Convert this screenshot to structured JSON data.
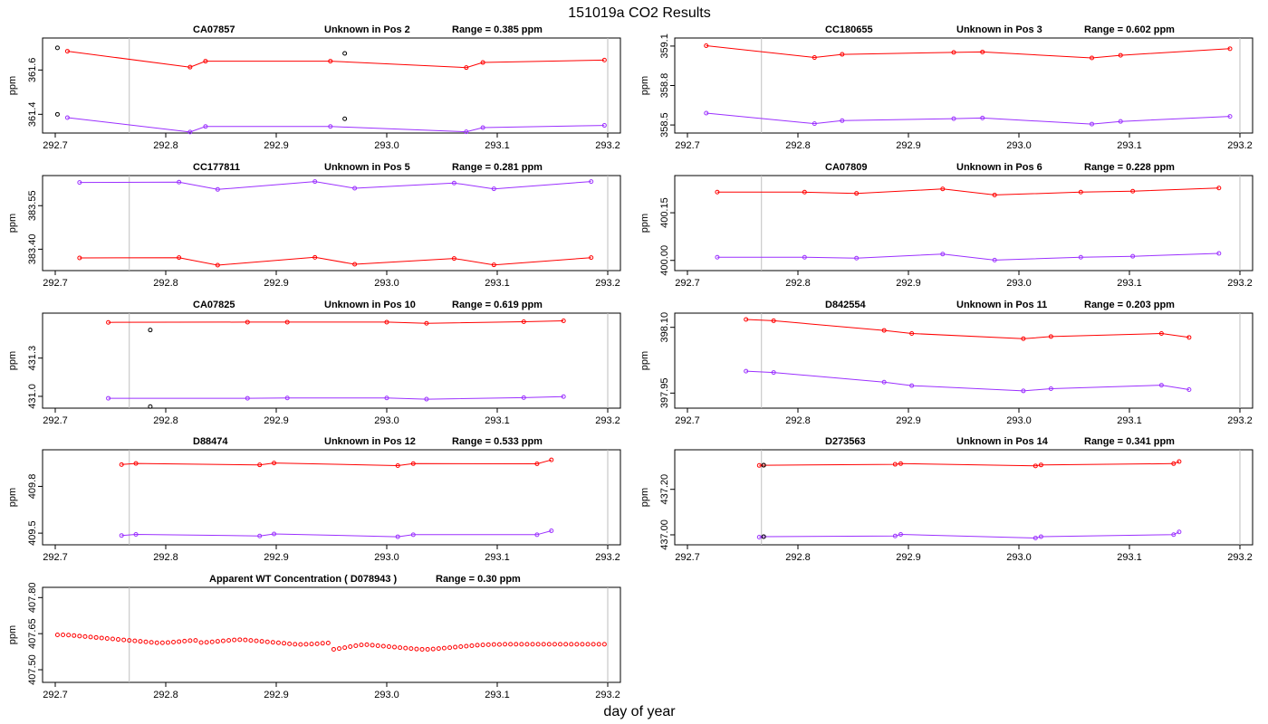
{
  "page": {
    "title": "151019a  CO2 Results",
    "xlabel": "day of year"
  },
  "colors": {
    "red": "#ff0000",
    "purple": "#9b30ff",
    "black": "#000000",
    "gray": "#bebebe"
  },
  "chart_data": [
    {
      "type": "line",
      "title_parts": [
        "CA07857",
        "Unknown in Pos 2",
        "Range =  0.385 ppm"
      ],
      "xlim": [
        292.7,
        293.2
      ],
      "xticks": [
        292.7,
        292.8,
        292.9,
        293.0,
        293.1,
        293.2
      ],
      "xtick_labels": [
        "292.7",
        "292.8",
        "292.9",
        "293.0",
        "293.1",
        "293.2"
      ],
      "ylim": [
        361.34,
        361.72
      ],
      "yticks": [
        361.4,
        361.6
      ],
      "ytick_labels": [
        "361.4",
        "361.6"
      ],
      "ylabel": "ppm",
      "vlines": [
        292.767,
        293.2
      ],
      "series": [
        {
          "name": "upper",
          "color": "red",
          "x": [
            292.711,
            292.822,
            292.836,
            292.949,
            293.072,
            293.087,
            293.197
          ],
          "y": [
            361.685,
            361.613,
            361.64,
            361.64,
            361.611,
            361.634,
            361.645
          ]
        },
        {
          "name": "lower",
          "color": "purple",
          "x": [
            292.711,
            292.822,
            292.836,
            292.949,
            293.072,
            293.087,
            293.197
          ],
          "y": [
            361.385,
            361.32,
            361.345,
            361.345,
            361.321,
            361.34,
            361.35
          ]
        }
      ],
      "points": [
        {
          "color": "black",
          "x": [
            292.702,
            292.702,
            292.962,
            292.962
          ],
          "y": [
            361.7,
            361.4,
            361.675,
            361.38
          ]
        }
      ]
    },
    {
      "type": "line",
      "title_parts": [
        "CC180655",
        "Unknown in Pos 3",
        "Range =  0.602 ppm"
      ],
      "xlim": [
        292.7,
        293.2
      ],
      "xticks": [
        292.7,
        292.8,
        292.9,
        293.0,
        293.1,
        293.2
      ],
      "xtick_labels": [
        "292.7",
        "292.8",
        "292.9",
        "293.0",
        "293.1",
        "293.2"
      ],
      "ylim": [
        358.48,
        359.12
      ],
      "yticks": [
        358.5,
        358.8,
        359.1
      ],
      "ytick_labels": [
        "358.5",
        "358.8",
        "359.1"
      ],
      "ylabel": "ppm",
      "vlines": [
        292.767,
        293.2
      ],
      "series": [
        {
          "name": "upper",
          "color": "red",
          "x": [
            292.717,
            292.815,
            292.84,
            292.941,
            292.967,
            293.066,
            293.092,
            293.191
          ],
          "y": [
            359.103,
            359.013,
            359.037,
            359.052,
            359.055,
            359.01,
            359.03,
            359.08
          ]
        },
        {
          "name": "lower",
          "color": "purple",
          "x": [
            292.717,
            292.815,
            292.84,
            292.941,
            292.967,
            293.066,
            293.092,
            293.191
          ],
          "y": [
            358.59,
            358.51,
            358.533,
            358.548,
            358.553,
            358.507,
            358.527,
            358.565
          ]
        }
      ],
      "points": []
    },
    {
      "type": "line",
      "title_parts": [
        "CC177811",
        "Unknown in Pos 5",
        "Range =  0.281 ppm"
      ],
      "xlim": [
        292.7,
        293.2
      ],
      "xticks": [
        292.7,
        292.8,
        292.9,
        293.0,
        293.1,
        293.2
      ],
      "xtick_labels": [
        "292.7",
        "292.8",
        "292.9",
        "293.0",
        "293.1",
        "293.2"
      ],
      "ylim": [
        383.345,
        383.635
      ],
      "yticks": [
        383.4,
        383.55
      ],
      "ytick_labels": [
        "383.40",
        "383.55"
      ],
      "ylabel": "ppm",
      "vlines": [
        292.767,
        293.2
      ],
      "series": [
        {
          "name": "upper",
          "color": "purple",
          "x": [
            292.722,
            292.812,
            292.847,
            292.935,
            292.971,
            293.061,
            293.097,
            293.185
          ],
          "y": [
            383.63,
            383.631,
            383.606,
            383.633,
            383.61,
            383.628,
            383.608,
            383.633
          ]
        },
        {
          "name": "lower",
          "color": "red",
          "x": [
            292.722,
            292.812,
            292.847,
            292.935,
            292.971,
            293.061,
            293.097,
            293.185
          ],
          "y": [
            383.37,
            383.371,
            383.345,
            383.372,
            383.348,
            383.368,
            383.346,
            383.371
          ]
        }
      ],
      "points": []
    },
    {
      "type": "line",
      "title_parts": [
        "CA07809",
        "Unknown in Pos 6",
        "Range =  0.228 ppm"
      ],
      "xlim": [
        292.7,
        293.2
      ],
      "xticks": [
        292.7,
        292.8,
        292.9,
        293.0,
        293.1,
        293.2
      ],
      "xtick_labels": [
        "292.7",
        "292.8",
        "292.9",
        "293.0",
        "293.1",
        "293.2"
      ],
      "ylim": [
        399.985,
        400.25
      ],
      "yticks": [
        400.0,
        400.15
      ],
      "ytick_labels": [
        "400.00",
        "400.15"
      ],
      "ylabel": "ppm",
      "vlines": [
        292.767,
        293.2
      ],
      "series": [
        {
          "name": "upper",
          "color": "red",
          "x": [
            292.727,
            292.806,
            292.853,
            292.931,
            292.978,
            293.056,
            293.103,
            293.181
          ],
          "y": [
            400.215,
            400.215,
            400.211,
            400.225,
            400.206,
            400.215,
            400.218,
            400.228
          ]
        },
        {
          "name": "lower",
          "color": "purple",
          "x": [
            292.727,
            292.806,
            292.853,
            292.931,
            292.978,
            293.056,
            293.103,
            293.181
          ],
          "y": [
            400.01,
            400.01,
            400.007,
            400.02,
            400.001,
            400.01,
            400.013,
            400.022
          ]
        }
      ],
      "points": []
    },
    {
      "type": "line",
      "title_parts": [
        "CA07825",
        "Unknown in Pos 10",
        "Range =  0.619 ppm"
      ],
      "xlim": [
        292.7,
        293.2
      ],
      "xticks": [
        292.7,
        292.8,
        292.9,
        293.0,
        293.1,
        293.2
      ],
      "xtick_labels": [
        "292.7",
        "292.8",
        "292.9",
        "293.0",
        "293.1",
        "293.2"
      ],
      "ylim": [
        430.95,
        431.61
      ],
      "yticks": [
        431.0,
        431.3
      ],
      "ytick_labels": [
        "431.0",
        "431.3"
      ],
      "ylabel": "ppm",
      "vlines": [
        292.767,
        293.2
      ],
      "series": [
        {
          "name": "upper",
          "color": "red",
          "x": [
            292.748,
            292.874,
            292.91,
            293.0,
            293.036,
            293.124,
            293.16
          ],
          "y": [
            431.58,
            431.582,
            431.582,
            431.582,
            431.573,
            431.585,
            431.592
          ]
        },
        {
          "name": "lower",
          "color": "purple",
          "x": [
            292.748,
            292.874,
            292.91,
            293.0,
            293.036,
            293.124,
            293.16
          ],
          "y": [
            430.985,
            430.985,
            430.987,
            430.987,
            430.978,
            430.99,
            430.998
          ]
        }
      ],
      "points": [
        {
          "color": "black",
          "x": [
            292.786,
            292.786
          ],
          "y": [
            431.52,
            430.92
          ]
        }
      ]
    },
    {
      "type": "line",
      "title_parts": [
        "D842554",
        "Unknown in Pos 11",
        "Range =  0.203 ppm"
      ],
      "xlim": [
        292.7,
        293.2
      ],
      "xticks": [
        292.7,
        292.8,
        292.9,
        293.0,
        293.1,
        293.2
      ],
      "xtick_labels": [
        "292.7",
        "292.8",
        "292.9",
        "293.0",
        "293.1",
        "293.2"
      ],
      "ylim": [
        397.928,
        398.12
      ],
      "yticks": [
        397.95,
        398.1
      ],
      "ytick_labels": [
        "397.95",
        "398.10"
      ],
      "ylabel": "ppm",
      "vlines": [
        292.767,
        293.2
      ],
      "series": [
        {
          "name": "upper",
          "color": "red",
          "x": [
            292.753,
            292.778,
            292.878,
            292.903,
            293.004,
            293.029,
            293.129,
            293.154
          ],
          "y": [
            398.118,
            398.115,
            398.093,
            398.086,
            398.074,
            398.079,
            398.086,
            398.077
          ]
        },
        {
          "name": "lower",
          "color": "purple",
          "x": [
            292.753,
            292.778,
            292.878,
            292.903,
            293.004,
            293.029,
            293.129,
            293.154
          ],
          "y": [
            398.0,
            397.997,
            397.975,
            397.967,
            397.955,
            397.96,
            397.968,
            397.958
          ]
        }
      ],
      "points": []
    },
    {
      "type": "line",
      "title_parts": [
        "D88474",
        "Unknown in Pos 12",
        "Range =  0.533 ppm"
      ],
      "xlim": [
        292.7,
        293.2
      ],
      "xticks": [
        292.7,
        292.8,
        292.9,
        293.0,
        293.1,
        293.2
      ],
      "xtick_labels": [
        "292.7",
        "292.8",
        "292.9",
        "293.0",
        "293.1",
        "293.2"
      ],
      "ylim": [
        409.46,
        410.0
      ],
      "yticks": [
        409.5,
        409.8
      ],
      "ytick_labels": [
        "409.5",
        "409.8"
      ],
      "ylabel": "ppm",
      "vlines": [
        292.767,
        293.2
      ],
      "series": [
        {
          "name": "upper",
          "color": "red",
          "x": [
            292.76,
            292.773,
            292.885,
            292.898,
            293.01,
            293.024,
            293.136,
            293.149
          ],
          "y": [
            409.94,
            409.947,
            409.938,
            409.95,
            409.933,
            409.946,
            409.945,
            409.97
          ]
        },
        {
          "name": "lower",
          "color": "purple",
          "x": [
            292.76,
            292.773,
            292.885,
            292.898,
            293.01,
            293.024,
            293.136,
            293.149
          ],
          "y": [
            409.485,
            409.492,
            409.482,
            409.495,
            409.477,
            409.49,
            409.49,
            409.515
          ]
        }
      ],
      "points": []
    },
    {
      "type": "line",
      "title_parts": [
        "D273563",
        "Unknown in Pos 14",
        "Range =  0.341 ppm"
      ],
      "xlim": [
        292.7,
        293.2
      ],
      "xticks": [
        292.7,
        292.8,
        292.9,
        293.0,
        293.1,
        293.2
      ],
      "xtick_labels": [
        "292.7",
        "292.8",
        "292.9",
        "293.0",
        "293.1",
        "293.2"
      ],
      "ylim": [
        436.98,
        437.35
      ],
      "yticks": [
        437.0,
        437.2
      ],
      "ytick_labels": [
        "437.00",
        "437.20"
      ],
      "ylabel": "ppm",
      "vlines": [
        292.767,
        293.2
      ],
      "series": [
        {
          "name": "upper",
          "color": "red",
          "x": [
            292.765,
            292.769,
            292.888,
            292.893,
            293.015,
            293.02,
            293.14,
            293.145
          ],
          "y": [
            437.305,
            437.306,
            437.31,
            437.313,
            437.303,
            437.307,
            437.313,
            437.322
          ]
        },
        {
          "name": "lower",
          "color": "purple",
          "x": [
            292.765,
            292.769,
            292.888,
            292.893,
            293.015,
            293.02,
            293.14,
            293.145
          ],
          "y": [
            436.99,
            436.992,
            436.995,
            437.002,
            436.986,
            436.992,
            437.001,
            437.013
          ]
        }
      ],
      "points": [
        {
          "color": "black",
          "x": [
            292.769,
            292.769
          ],
          "y": [
            437.306,
            436.992
          ]
        }
      ]
    },
    {
      "type": "scatter",
      "title_parts": [
        "Apparent WT Concentration ( D078943 )",
        "Range = 0.30 ppm"
      ],
      "xlim": [
        292.7,
        293.2
      ],
      "xticks": [
        292.7,
        292.8,
        292.9,
        293.0,
        293.1,
        293.2
      ],
      "xtick_labels": [
        "292.7",
        "292.8",
        "292.9",
        "293.0",
        "293.1",
        "293.2"
      ],
      "ylim": [
        407.47,
        407.82
      ],
      "yticks": [
        407.5,
        407.65,
        407.8
      ],
      "ytick_labels": [
        "407.50",
        "407.65",
        "407.80"
      ],
      "ylabel": "ppm",
      "vlines": [
        292.767,
        293.2
      ],
      "wt_x_start": 292.702,
      "wt_x_step": 0.005,
      "wt_values": [
        407.645,
        407.645,
        407.644,
        407.642,
        407.64,
        407.638,
        407.636,
        407.634,
        407.632,
        407.63,
        407.628,
        407.626,
        407.624,
        407.622,
        407.62,
        407.618,
        407.616,
        407.614,
        407.612,
        407.612,
        407.613,
        407.615,
        407.617,
        407.619,
        407.621,
        407.622,
        407.613,
        407.614,
        407.616,
        407.618,
        407.62,
        407.622,
        407.624,
        407.625,
        407.624,
        407.622,
        407.62,
        407.618,
        407.616,
        407.614,
        407.612,
        407.61,
        407.608,
        407.606,
        407.605,
        407.606,
        407.607,
        407.608,
        407.61,
        407.611,
        407.585,
        407.588,
        407.592,
        407.596,
        407.6,
        407.603,
        407.604,
        407.602,
        407.6,
        407.598,
        407.596,
        407.594,
        407.592,
        407.59,
        407.588,
        407.586,
        407.585,
        407.585,
        407.586,
        407.588,
        407.59,
        407.592,
        407.594,
        407.596,
        407.598,
        407.6,
        407.602,
        407.603,
        407.604,
        407.605,
        407.605,
        407.606,
        407.606,
        407.606,
        407.606,
        407.606,
        407.606,
        407.606,
        407.606,
        407.606,
        407.606,
        407.606,
        407.606,
        407.606,
        407.606,
        407.606,
        407.606,
        407.606,
        407.606,
        407.606
      ]
    }
  ]
}
